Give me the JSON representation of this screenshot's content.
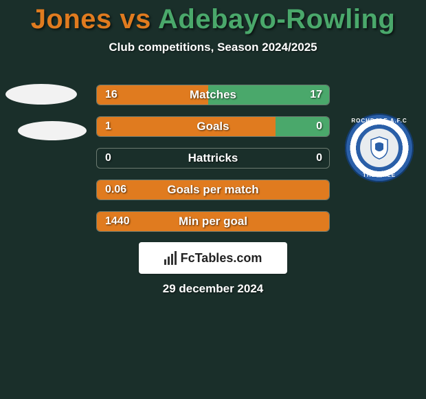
{
  "header": {
    "title_left": "Jones",
    "title_vs": " vs ",
    "title_right": "Adebayo-Rowling",
    "title_color_left": "#e07b1f",
    "title_color_right": "#4aa86b",
    "subtitle": "Club competitions, Season 2024/2025"
  },
  "style": {
    "background": "#1a2f2a",
    "left_fill": "#e07b1f",
    "right_fill": "#4aa86b",
    "bar_border": "#6b7a70",
    "text_color": "#ffffff"
  },
  "avatars": {
    "left": {
      "type": "placeholder-ellipses"
    },
    "right": {
      "type": "crest",
      "top_text": "ROCHDALE A.F.C",
      "bottom_text": "THE DALE",
      "crest_bg": "#2a5fa8"
    }
  },
  "bars": [
    {
      "label": "Matches",
      "left_val": "16",
      "right_val": "17",
      "left_pct": 48,
      "right_pct": 52
    },
    {
      "label": "Goals",
      "left_val": "1",
      "right_val": "0",
      "left_pct": 77,
      "right_pct": 23
    },
    {
      "label": "Hattricks",
      "left_val": "0",
      "right_val": "0",
      "left_pct": 0,
      "right_pct": 0
    },
    {
      "label": "Goals per match",
      "left_val": "0.06",
      "right_val": "",
      "left_pct": 100,
      "right_pct": 0
    },
    {
      "label": "Min per goal",
      "left_val": "1440",
      "right_val": "",
      "left_pct": 100,
      "right_pct": 0
    }
  ],
  "attribution": {
    "text": "FcTables.com"
  },
  "date": "29 december 2024"
}
